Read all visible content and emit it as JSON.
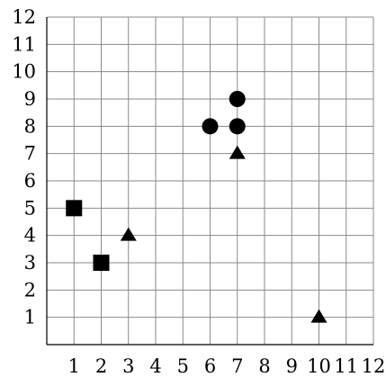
{
  "chart_data": {
    "type": "scatter",
    "title": "",
    "xlabel": "",
    "ylabel": "",
    "xlim": [
      0,
      12
    ],
    "ylim": [
      0,
      12
    ],
    "grid": true,
    "x_ticks": [
      "1",
      "2",
      "3",
      "4",
      "5",
      "6",
      "7",
      "8",
      "9",
      "10",
      "11",
      "12"
    ],
    "y_ticks": [
      "1",
      "2",
      "3",
      "4",
      "5",
      "6",
      "7",
      "8",
      "9",
      "10",
      "11",
      "12"
    ],
    "series": [
      {
        "marker": "square",
        "color": "#000000",
        "points": [
          [
            1,
            5
          ],
          [
            2,
            3
          ]
        ]
      },
      {
        "marker": "triangle",
        "color": "#000000",
        "points": [
          [
            3,
            4
          ],
          [
            7,
            7
          ],
          [
            10,
            1
          ]
        ]
      },
      {
        "marker": "circle",
        "color": "#000000",
        "points": [
          [
            6,
            8
          ],
          [
            7,
            8
          ],
          [
            7,
            9
          ]
        ]
      }
    ]
  }
}
